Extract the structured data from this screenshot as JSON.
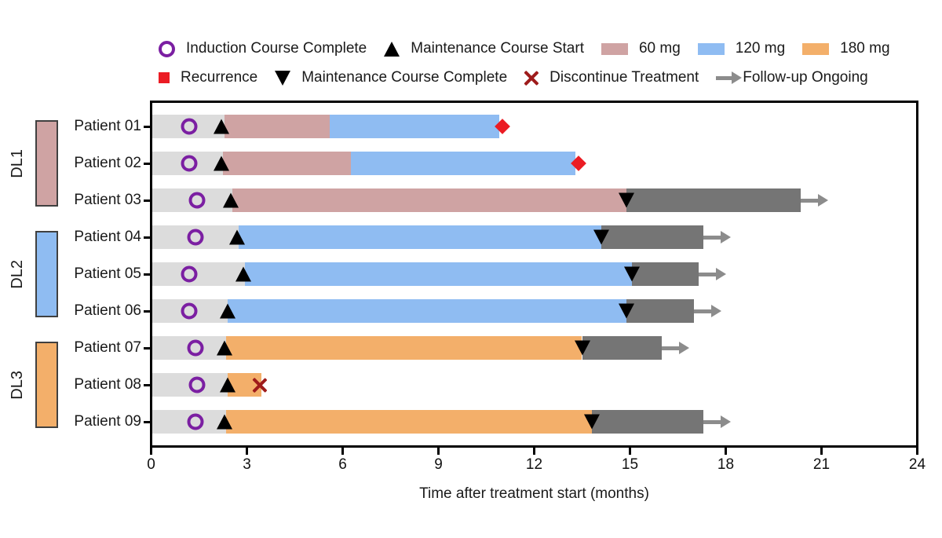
{
  "colors": {
    "induction": "#DCDCDC",
    "dose_60": "#CFA3A3",
    "dose_120": "#8FBCF2",
    "dose_180": "#F3AF6A",
    "followup": "#757575",
    "arrow": "#8C8C8C",
    "purple": "#7B1FA2",
    "red": "#EB1C24",
    "darkred": "#9E1B1B"
  },
  "legend": {
    "rows": [
      [
        {
          "icon": "circle-open",
          "label": "Induction Course Complete"
        },
        {
          "icon": "triangle-up",
          "label": "Maintenance Course Start"
        },
        {
          "icon": "swatch-60",
          "label": "60 mg"
        },
        {
          "icon": "swatch-120",
          "label": "120 mg"
        },
        {
          "icon": "swatch-180",
          "label": "180 mg"
        }
      ],
      [
        {
          "icon": "diamond",
          "label": "Recurrence"
        },
        {
          "icon": "triangle-down",
          "label": "Maintenance Course Complete"
        },
        {
          "icon": "x-mark",
          "label": "Discontinue Treatment"
        },
        {
          "icon": "arrow",
          "label": "Follow-up Ongoing"
        }
      ]
    ]
  },
  "chart_data": {
    "type": "bar",
    "variant": "horizontal-swimmer",
    "xlabel": "Time after treatment start (months)",
    "xlim": [
      0,
      24
    ],
    "xticks": [
      0,
      3,
      6,
      9,
      12,
      15,
      18,
      21,
      24
    ],
    "grid": false,
    "dose_levels": [
      {
        "id": "DL1",
        "color_key": "dose_60",
        "patients": [
          "Patient 01",
          "Patient 02",
          "Patient 03"
        ]
      },
      {
        "id": "DL2",
        "color_key": "dose_120",
        "patients": [
          "Patient 04",
          "Patient 05",
          "Patient 06"
        ]
      },
      {
        "id": "DL3",
        "color_key": "dose_180",
        "patients": [
          "Patient 07",
          "Patient 08",
          "Patient 09"
        ]
      }
    ],
    "patients": [
      {
        "label": "Patient 01",
        "dose_level": "DL1",
        "segments": [
          {
            "type": "induction",
            "start": 0,
            "end": 2.3
          },
          {
            "type": "60 mg",
            "start": 2.3,
            "end": 5.6
          },
          {
            "type": "120 mg",
            "start": 5.6,
            "end": 10.9
          }
        ],
        "events": [
          {
            "type": "induction-complete",
            "t": 1.2
          },
          {
            "type": "maintenance-start",
            "t": 2.2
          },
          {
            "type": "recurrence",
            "t": 11.0
          }
        ],
        "followup_ongoing": false
      },
      {
        "label": "Patient 02",
        "dose_level": "DL1",
        "segments": [
          {
            "type": "induction",
            "start": 0,
            "end": 2.25
          },
          {
            "type": "60 mg",
            "start": 2.25,
            "end": 6.25
          },
          {
            "type": "120 mg",
            "start": 6.25,
            "end": 13.3
          }
        ],
        "events": [
          {
            "type": "induction-complete",
            "t": 1.2
          },
          {
            "type": "maintenance-start",
            "t": 2.2
          },
          {
            "type": "recurrence",
            "t": 13.4
          }
        ],
        "followup_ongoing": false
      },
      {
        "label": "Patient 03",
        "dose_level": "DL1",
        "segments": [
          {
            "type": "induction",
            "start": 0,
            "end": 2.55
          },
          {
            "type": "60 mg",
            "start": 2.55,
            "end": 14.9
          },
          {
            "type": "follow-up",
            "start": 14.9,
            "end": 20.35
          }
        ],
        "events": [
          {
            "type": "induction-complete",
            "t": 1.45
          },
          {
            "type": "maintenance-start",
            "t": 2.5
          },
          {
            "type": "maintenance-complete",
            "t": 14.9
          }
        ],
        "followup_ongoing": true
      },
      {
        "label": "Patient 04",
        "dose_level": "DL2",
        "segments": [
          {
            "type": "induction",
            "start": 0,
            "end": 2.75
          },
          {
            "type": "120 mg",
            "start": 2.75,
            "end": 14.1
          },
          {
            "type": "follow-up",
            "start": 14.1,
            "end": 17.3
          }
        ],
        "events": [
          {
            "type": "induction-complete",
            "t": 1.4
          },
          {
            "type": "maintenance-start",
            "t": 2.7
          },
          {
            "type": "maintenance-complete",
            "t": 14.1
          }
        ],
        "followup_ongoing": true
      },
      {
        "label": "Patient 05",
        "dose_level": "DL2",
        "segments": [
          {
            "type": "induction",
            "start": 0,
            "end": 2.95
          },
          {
            "type": "120 mg",
            "start": 2.95,
            "end": 15.05
          },
          {
            "type": "follow-up",
            "start": 15.05,
            "end": 17.15
          }
        ],
        "events": [
          {
            "type": "induction-complete",
            "t": 1.2
          },
          {
            "type": "maintenance-start",
            "t": 2.9
          },
          {
            "type": "maintenance-complete",
            "t": 15.05
          }
        ],
        "followup_ongoing": true
      },
      {
        "label": "Patient 06",
        "dose_level": "DL2",
        "segments": [
          {
            "type": "induction",
            "start": 0,
            "end": 2.4
          },
          {
            "type": "120 mg",
            "start": 2.4,
            "end": 14.9
          },
          {
            "type": "follow-up",
            "start": 14.9,
            "end": 17.0
          }
        ],
        "events": [
          {
            "type": "induction-complete",
            "t": 1.2
          },
          {
            "type": "maintenance-start",
            "t": 2.4
          },
          {
            "type": "maintenance-complete",
            "t": 14.9
          }
        ],
        "followup_ongoing": true
      },
      {
        "label": "Patient 07",
        "dose_level": "DL3",
        "segments": [
          {
            "type": "induction",
            "start": 0,
            "end": 2.35
          },
          {
            "type": "180 mg",
            "start": 2.35,
            "end": 13.5
          },
          {
            "type": "follow-up",
            "start": 13.5,
            "end": 16.0
          }
        ],
        "events": [
          {
            "type": "induction-complete",
            "t": 1.4
          },
          {
            "type": "maintenance-start",
            "t": 2.3
          },
          {
            "type": "maintenance-complete",
            "t": 13.5
          }
        ],
        "followup_ongoing": true
      },
      {
        "label": "Patient 08",
        "dose_level": "DL3",
        "segments": [
          {
            "type": "induction",
            "start": 0,
            "end": 2.4
          },
          {
            "type": "180 mg",
            "start": 2.4,
            "end": 3.45
          }
        ],
        "events": [
          {
            "type": "induction-complete",
            "t": 1.45
          },
          {
            "type": "maintenance-start",
            "t": 2.4
          },
          {
            "type": "discontinue",
            "t": 3.4
          }
        ],
        "followup_ongoing": false
      },
      {
        "label": "Patient 09",
        "dose_level": "DL3",
        "segments": [
          {
            "type": "induction",
            "start": 0,
            "end": 2.35
          },
          {
            "type": "180 mg",
            "start": 2.35,
            "end": 13.8
          },
          {
            "type": "follow-up",
            "start": 13.8,
            "end": 17.3
          }
        ],
        "events": [
          {
            "type": "induction-complete",
            "t": 1.4
          },
          {
            "type": "maintenance-start",
            "t": 2.3
          },
          {
            "type": "maintenance-complete",
            "t": 13.8
          }
        ],
        "followup_ongoing": true
      }
    ]
  }
}
